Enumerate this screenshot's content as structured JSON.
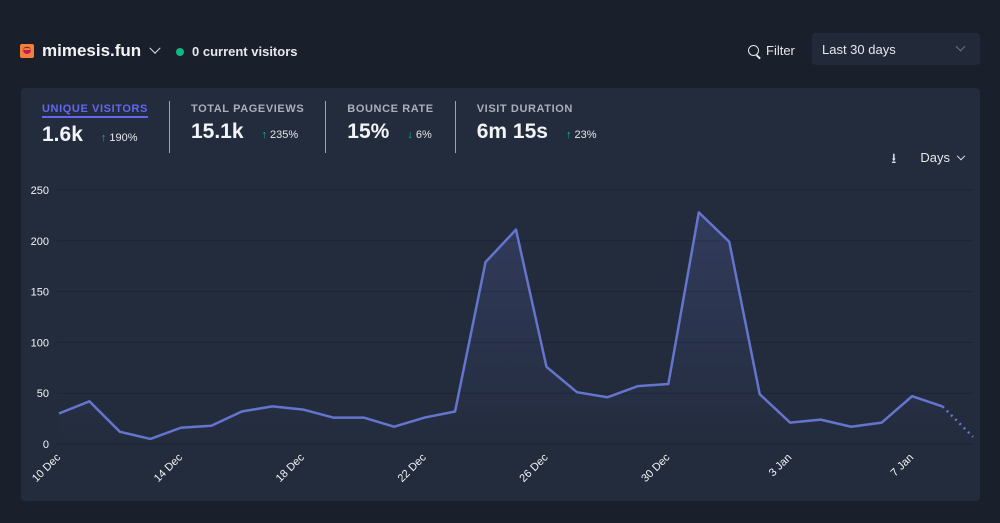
{
  "header": {
    "site_name": "mimesis.fun",
    "current_visitors": "0 current visitors",
    "filter_label": "Filter",
    "period_label": "Last 30 days"
  },
  "stats": [
    {
      "label": "Unique visitors",
      "value": "1.6k",
      "change": "190%",
      "direction": "up",
      "active": true
    },
    {
      "label": "Total pageviews",
      "value": "15.1k",
      "change": "235%",
      "direction": "up",
      "active": false
    },
    {
      "label": "Bounce rate",
      "value": "15%",
      "change": "6%",
      "direction": "down",
      "active": false
    },
    {
      "label": "Visit duration",
      "value": "6m 15s",
      "change": "23%",
      "direction": "up",
      "active": false
    }
  ],
  "controls": {
    "interval_label": "Days",
    "icons": [
      "download-icon",
      "chevron-down-icon"
    ]
  },
  "colors": {
    "line": "#6574cd",
    "positive": "#10b981",
    "accent": "#6366f1",
    "background": "#1a1f2c",
    "card": "#232c3d"
  },
  "chart_data": {
    "type": "line",
    "title": "",
    "xlabel": "",
    "ylabel": "",
    "ylim": [
      0,
      250
    ],
    "yticks": [
      0,
      50,
      100,
      150,
      200,
      250
    ],
    "grid": true,
    "x": [
      "10 Dec",
      "11 Dec",
      "12 Dec",
      "13 Dec",
      "14 Dec",
      "15 Dec",
      "16 Dec",
      "17 Dec",
      "18 Dec",
      "19 Dec",
      "20 Dec",
      "21 Dec",
      "22 Dec",
      "23 Dec",
      "24 Dec",
      "25 Dec",
      "26 Dec",
      "27 Dec",
      "28 Dec",
      "29 Dec",
      "30 Dec",
      "31 Dec",
      "1 Jan",
      "2 Jan",
      "3 Jan",
      "4 Jan",
      "5 Jan",
      "6 Jan",
      "7 Jan",
      "8 Jan",
      "9 Jan"
    ],
    "xtick_labels": [
      "10 Dec",
      "14 Dec",
      "18 Dec",
      "22 Dec",
      "26 Dec",
      "30 Dec",
      "3 Jan",
      "7 Jan"
    ],
    "series": [
      {
        "name": "Unique visitors",
        "values": [
          30,
          42,
          12,
          5,
          16,
          18,
          32,
          37,
          34,
          26,
          26,
          17,
          26,
          32,
          179,
          211,
          76,
          51,
          46,
          57,
          59,
          228,
          199,
          49,
          21,
          24,
          17,
          21,
          47,
          37,
          7
        ],
        "incomplete_last_point": true
      }
    ]
  }
}
